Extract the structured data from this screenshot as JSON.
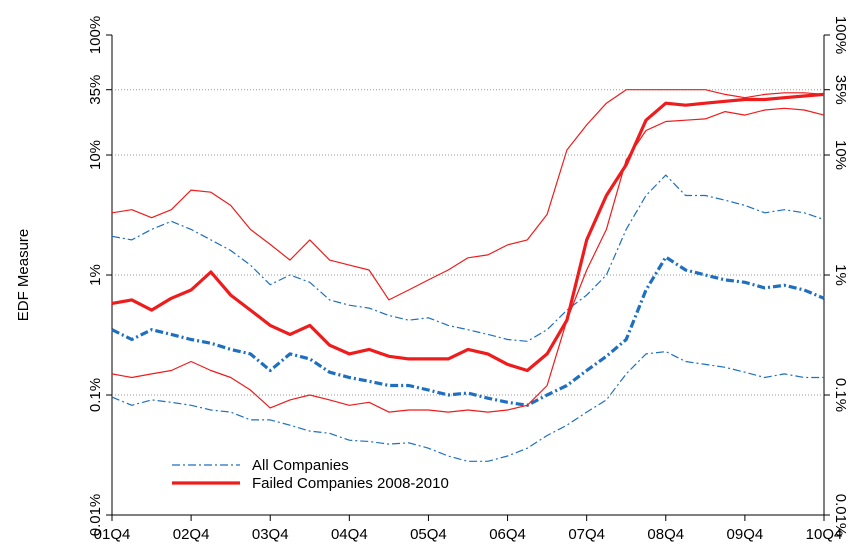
{
  "chart_data": {
    "type": "line",
    "y_label": "EDF Measure",
    "log_y": true,
    "grid": true,
    "legend": "lower left",
    "categories": [
      "01Q4",
      null,
      null,
      null,
      "02Q4",
      null,
      null,
      null,
      "03Q4",
      null,
      null,
      null,
      "04Q4",
      null,
      null,
      null,
      "05Q4",
      null,
      null,
      null,
      "06Q4",
      null,
      null,
      null,
      "07Q4",
      null,
      null,
      null,
      "08Q4",
      null,
      null,
      null,
      "09Q4",
      null,
      null,
      null,
      "10Q4"
    ],
    "ylim": [
      0.01,
      100
    ],
    "yticks": [
      {
        "value": 0.01,
        "label": "0.01%"
      },
      {
        "value": 0.1,
        "label": "0.1%"
      },
      {
        "value": 1,
        "label": "1%"
      },
      {
        "value": 10,
        "label": "10%"
      },
      {
        "value": 35,
        "label": "35%"
      },
      {
        "value": 100,
        "label": "100%"
      }
    ],
    "series": [
      {
        "name": "All Companies",
        "color": "#1f6fc0",
        "linestyle": "dashdot",
        "values": [
          0.35,
          0.29,
          0.35,
          0.32,
          0.29,
          0.27,
          0.24,
          0.22,
          0.16,
          0.22,
          0.2,
          0.155,
          0.14,
          0.13,
          0.12,
          0.12,
          0.11,
          0.1,
          0.104,
          0.094,
          0.087,
          0.082,
          0.1,
          0.12,
          0.16,
          0.21,
          0.29,
          0.75,
          1.41,
          1.1,
          1.0,
          0.91,
          0.87,
          0.78,
          0.82,
          0.75,
          0.64
        ],
        "upper": [
          2.1,
          1.96,
          2.4,
          2.8,
          2.4,
          1.96,
          1.6,
          1.21,
          0.83,
          1.0,
          0.87,
          0.62,
          0.56,
          0.53,
          0.46,
          0.42,
          0.44,
          0.38,
          0.35,
          0.32,
          0.29,
          0.28,
          0.35,
          0.51,
          0.68,
          1.0,
          2.4,
          4.6,
          6.8,
          4.6,
          4.6,
          4.2,
          3.8,
          3.3,
          3.5,
          3.3,
          2.9
        ],
        "lower": [
          0.096,
          0.082,
          0.091,
          0.087,
          0.082,
          0.075,
          0.072,
          0.062,
          0.062,
          0.056,
          0.05,
          0.048,
          0.042,
          0.041,
          0.039,
          0.04,
          0.036,
          0.031,
          0.028,
          0.028,
          0.031,
          0.036,
          0.046,
          0.056,
          0.072,
          0.091,
          0.15,
          0.22,
          0.23,
          0.19,
          0.18,
          0.17,
          0.155,
          0.14,
          0.15,
          0.14,
          0.14
        ]
      },
      {
        "name": "Failed Companies 2008-2010",
        "color": "#ee1c1c",
        "linestyle": "solid",
        "values": [
          0.58,
          0.62,
          0.51,
          0.64,
          0.75,
          1.06,
          0.68,
          0.51,
          0.38,
          0.32,
          0.38,
          0.26,
          0.22,
          0.24,
          0.21,
          0.2,
          0.2,
          0.2,
          0.24,
          0.22,
          0.18,
          0.16,
          0.22,
          0.42,
          1.96,
          4.6,
          8.3,
          19.5,
          27,
          26,
          27,
          28,
          29,
          29,
          30,
          31,
          32
        ],
        "upper": [
          3.3,
          3.5,
          3.0,
          3.5,
          5.1,
          4.9,
          3.8,
          2.4,
          1.8,
          1.33,
          1.96,
          1.33,
          1.21,
          1.1,
          0.62,
          0.75,
          0.91,
          1.1,
          1.39,
          1.47,
          1.78,
          1.96,
          3.2,
          11,
          17.8,
          27,
          35,
          35,
          35,
          35,
          35,
          32,
          30,
          32,
          33,
          33,
          32
        ],
        "lower": [
          0.15,
          0.14,
          0.15,
          0.16,
          0.19,
          0.16,
          0.14,
          0.11,
          0.078,
          0.091,
          0.1,
          0.091,
          0.082,
          0.087,
          0.072,
          0.075,
          0.075,
          0.072,
          0.075,
          0.072,
          0.075,
          0.082,
          0.12,
          0.42,
          1.1,
          2.4,
          9.1,
          16,
          19,
          19.5,
          20,
          23,
          21.5,
          23.7,
          24.5,
          23.7,
          21.5
        ]
      }
    ]
  }
}
